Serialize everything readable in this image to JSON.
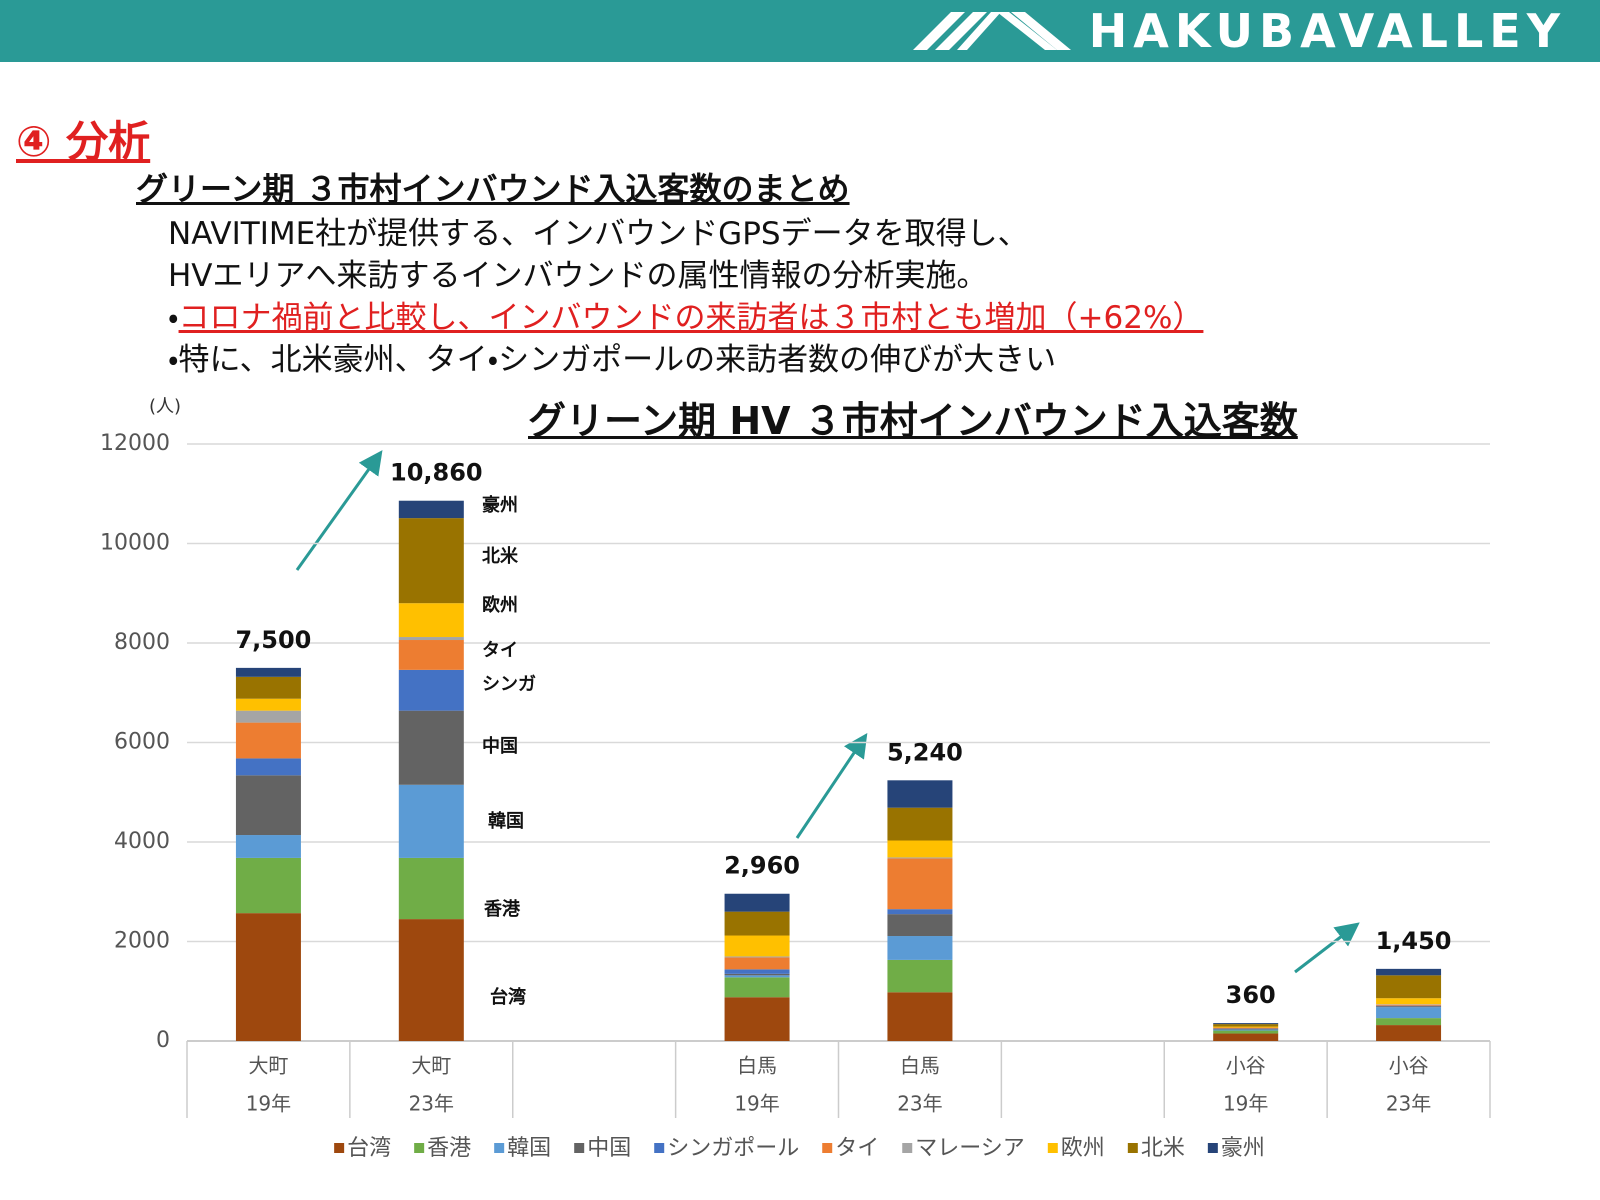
{
  "header": {
    "logo": "HAKUBAVALLEY"
  },
  "section": "④ 分析",
  "subtitle": "グリーン期 ３市村インバウンド入込客数のまとめ",
  "body_lines": [
    "NAVITIME社が提供する、インバウンドGPSデータを取得し、",
    "HVエリアへ来訪するインバウンドの属性情報の分析実施。"
  ],
  "bullets": [
    {
      "marker": "・",
      "text": "コロナ禍前と比較し、インバウンドの来訪者は３市村とも増加（+62%）"
    },
    {
      "marker": "・",
      "text": "特に、北米豪州、タイ・シンガポールの来訪者数の伸びが大きい"
    }
  ],
  "chart_data": {
    "type": "stacked_bar",
    "title": "グリーン期 HV ３市村インバウンド入込客数",
    "y_unit": "(人)",
    "categories": [
      [
        "大町",
        "19年"
      ],
      [
        "大町",
        "23年"
      ],
      null,
      [
        "白馬",
        "19年"
      ],
      [
        "白馬",
        "23年"
      ],
      null,
      [
        "小谷",
        "19年"
      ],
      [
        "小谷",
        "23年"
      ]
    ],
    "ylim": [
      0,
      12000
    ],
    "yticks": [
      0,
      2000,
      4000,
      6000,
      8000,
      10000,
      12000
    ],
    "grid": true,
    "legend": "bottom",
    "series": [
      {
        "name": "台湾",
        "color": "#9e480e",
        "values": [
          2570,
          2450,
          null,
          880,
          980,
          null,
          150,
          320
        ]
      },
      {
        "name": "香港",
        "color": "#70ad47",
        "values": [
          1110,
          1230,
          null,
          400,
          650,
          null,
          60,
          140
        ]
      },
      {
        "name": "韓国",
        "color": "#5b9bd5",
        "values": [
          460,
          1470,
          null,
          40,
          480,
          null,
          20,
          220
        ]
      },
      {
        "name": "中国",
        "color": "#636363",
        "values": [
          1200,
          1490,
          null,
          30,
          440,
          null,
          10,
          20
        ]
      },
      {
        "name": "シンガポール",
        "color": "#4472c4",
        "values": [
          340,
          820,
          null,
          90,
          100,
          null,
          10,
          10
        ]
      },
      {
        "name": "タイ",
        "color": "#ed7d31",
        "values": [
          720,
          600,
          null,
          240,
          1020,
          null,
          20,
          20
        ]
      },
      {
        "name": "マレーシア",
        "color": "#a5a5a5",
        "values": [
          240,
          60,
          null,
          20,
          20,
          null,
          0,
          10
        ]
      },
      {
        "name": "欧州",
        "color": "#ffc000",
        "values": [
          240,
          680,
          null,
          420,
          340,
          null,
          20,
          120
        ]
      },
      {
        "name": "北米",
        "color": "#997300",
        "values": [
          440,
          1710,
          null,
          480,
          660,
          null,
          50,
          460
        ]
      },
      {
        "name": "豪州",
        "color": "#264478",
        "values": [
          180,
          350,
          null,
          360,
          550,
          null,
          20,
          130
        ]
      }
    ],
    "totals": [
      7500,
      10860,
      null,
      2960,
      5240,
      null,
      360,
      1450
    ],
    "total_labels": [
      "7,500",
      "10,860",
      null,
      "2,960",
      "5,240",
      null,
      "360",
      "1,450"
    ],
    "segment_annotations": [
      "豪州",
      "北米",
      "欧州",
      "タイ",
      "シンガ",
      "中国",
      "韓国",
      "香港",
      "台湾"
    ]
  }
}
